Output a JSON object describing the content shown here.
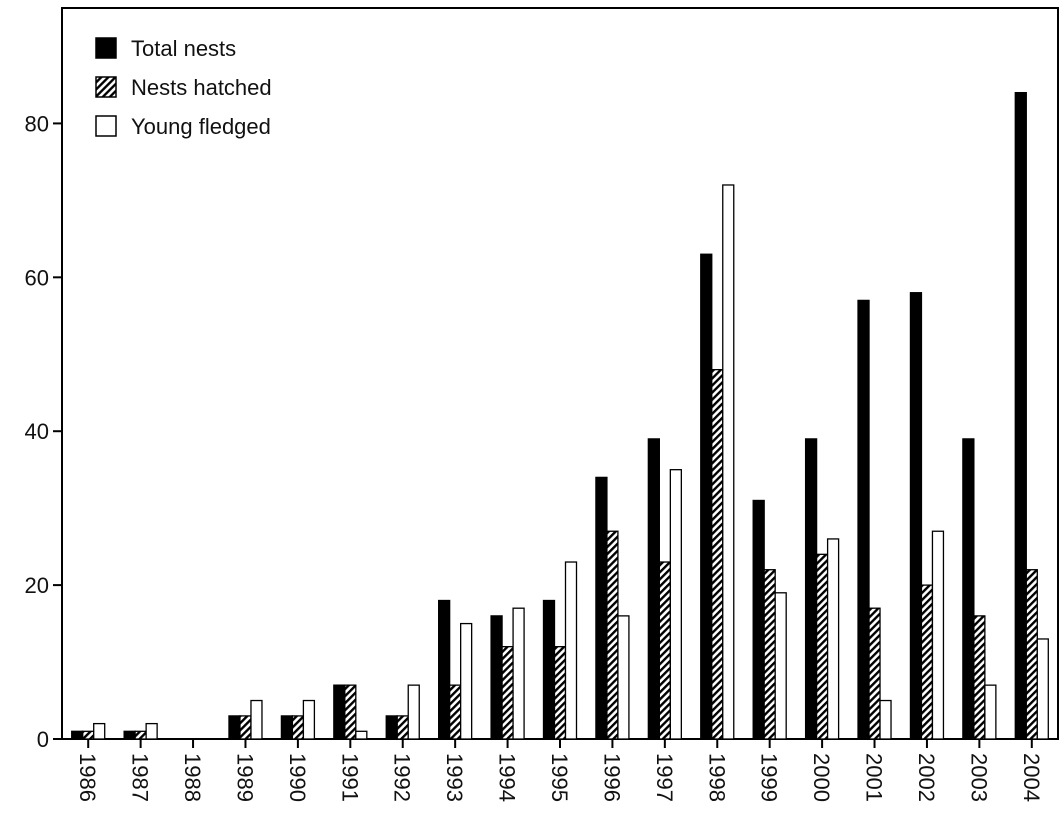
{
  "chart_data": {
    "type": "bar",
    "categories": [
      "1986",
      "1987",
      "1988",
      "1989",
      "1990",
      "1991",
      "1992",
      "1993",
      "1994",
      "1995",
      "1996",
      "1997",
      "1998",
      "1999",
      "2000",
      "2001",
      "2002",
      "2003",
      "2004"
    ],
    "series": [
      {
        "name": "Total nests",
        "color": "#000000",
        "pattern": "solid",
        "values": [
          1,
          1,
          0,
          3,
          3,
          7,
          3,
          18,
          16,
          18,
          34,
          39,
          63,
          31,
          39,
          57,
          58,
          39,
          84
        ]
      },
      {
        "name": "Nests hatched",
        "color": "#000000",
        "pattern": "hatch",
        "values": [
          1,
          1,
          0,
          3,
          3,
          7,
          3,
          7,
          12,
          12,
          27,
          23,
          48,
          22,
          24,
          17,
          20,
          16,
          22
        ]
      },
      {
        "name": "Young fledged",
        "color": "#000000",
        "pattern": "open",
        "values": [
          2,
          2,
          0,
          5,
          5,
          1,
          7,
          15,
          17,
          23,
          16,
          35,
          72,
          19,
          26,
          5,
          27,
          7,
          13
        ]
      }
    ],
    "ylim": [
      0,
      95
    ],
    "yticks": [
      0,
      20,
      40,
      60,
      80
    ],
    "legend": "upper-left",
    "grid": false
  }
}
